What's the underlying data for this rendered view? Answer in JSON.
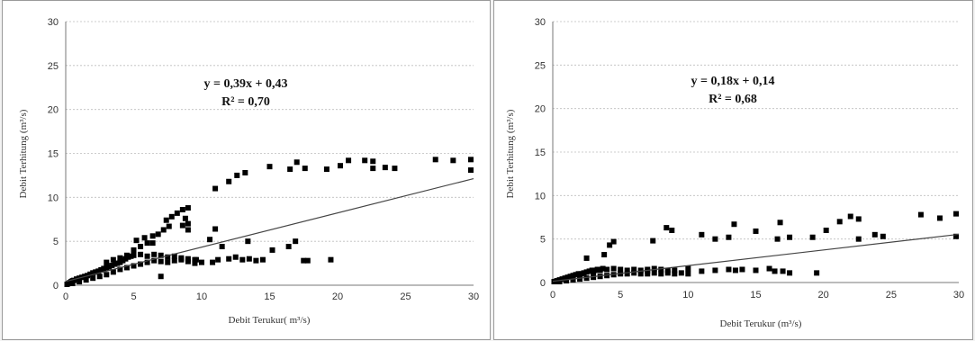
{
  "chart_data": [
    {
      "type": "scatter",
      "xlabel": "Debit Terukur( m³/s)",
      "ylabel": "Debit Terhitung (m³/s)",
      "xlim": [
        0,
        30
      ],
      "ylim": [
        0,
        30
      ],
      "xticks": [
        "0",
        "5",
        "10",
        "15",
        "20",
        "25",
        "30"
      ],
      "yticks": [
        "0",
        "5",
        "10",
        "15",
        "20",
        "25",
        "30"
      ],
      "grid": true,
      "equation": "y = 0,39x + 0,43",
      "r2": "R² = 0,70",
      "trendline": {
        "slope": 0.39,
        "intercept": 0.43
      },
      "points": [
        [
          0.1,
          0.1
        ],
        [
          0.2,
          0.2
        ],
        [
          0.3,
          0.3
        ],
        [
          0.4,
          0.4
        ],
        [
          0.5,
          0.5
        ],
        [
          0.6,
          0.55
        ],
        [
          0.8,
          0.7
        ],
        [
          1.0,
          0.8
        ],
        [
          1.2,
          0.9
        ],
        [
          1.4,
          1.0
        ],
        [
          1.6,
          1.1
        ],
        [
          1.8,
          1.25
        ],
        [
          2.0,
          1.4
        ],
        [
          2.2,
          1.5
        ],
        [
          2.4,
          1.6
        ],
        [
          2.6,
          1.75
        ],
        [
          2.8,
          1.9
        ],
        [
          3.0,
          2.0
        ],
        [
          3.2,
          2.1
        ],
        [
          3.4,
          2.25
        ],
        [
          3.6,
          2.4
        ],
        [
          3.8,
          2.5
        ],
        [
          4.0,
          2.6
        ],
        [
          4.2,
          2.8
        ],
        [
          4.4,
          3.0
        ],
        [
          4.6,
          3.2
        ],
        [
          4.8,
          3.3
        ],
        [
          5.0,
          3.4
        ],
        [
          0.5,
          0.2
        ],
        [
          1.0,
          0.4
        ],
        [
          1.5,
          0.6
        ],
        [
          2.0,
          0.8
        ],
        [
          2.5,
          1.0
        ],
        [
          3.0,
          1.2
        ],
        [
          3.5,
          1.5
        ],
        [
          4.0,
          1.8
        ],
        [
          4.5,
          2.0
        ],
        [
          5.0,
          2.2
        ],
        [
          5.5,
          2.4
        ],
        [
          6.0,
          2.6
        ],
        [
          6.5,
          2.8
        ],
        [
          7.0,
          2.7
        ],
        [
          7.5,
          2.6
        ],
        [
          8.0,
          2.8
        ],
        [
          8.5,
          2.9
        ],
        [
          9.0,
          2.7
        ],
        [
          9.5,
          2.5
        ],
        [
          10.0,
          2.6
        ],
        [
          3.0,
          2.6
        ],
        [
          3.5,
          2.9
        ],
        [
          4.0,
          3.1
        ],
        [
          4.5,
          3.4
        ],
        [
          5.0,
          3.6
        ],
        [
          5.5,
          3.5
        ],
        [
          6.0,
          3.3
        ],
        [
          6.5,
          3.5
        ],
        [
          7.0,
          3.4
        ],
        [
          7.5,
          3.2
        ],
        [
          8.0,
          3.3
        ],
        [
          8.5,
          3.1
        ],
        [
          9.0,
          3.0
        ],
        [
          9.5,
          2.9
        ],
        [
          5.0,
          4.0
        ],
        [
          5.5,
          4.4
        ],
        [
          6.0,
          4.8
        ],
        [
          5.2,
          5.1
        ],
        [
          5.8,
          5.4
        ],
        [
          6.4,
          5.6
        ],
        [
          6.8,
          5.8
        ],
        [
          7.2,
          6.3
        ],
        [
          7.6,
          6.7
        ],
        [
          7.4,
          7.4
        ],
        [
          7.8,
          7.8
        ],
        [
          8.2,
          8.2
        ],
        [
          8.6,
          8.6
        ],
        [
          9.0,
          8.8
        ],
        [
          8.8,
          7.6
        ],
        [
          9.0,
          7.0
        ],
        [
          8.6,
          6.8
        ],
        [
          9.0,
          6.3
        ],
        [
          7.0,
          1.0
        ],
        [
          6.4,
          4.8
        ],
        [
          10.6,
          5.2
        ],
        [
          11.0,
          6.4
        ],
        [
          11.5,
          4.4
        ],
        [
          12.0,
          3.0
        ],
        [
          12.5,
          3.2
        ],
        [
          13.0,
          2.9
        ],
        [
          13.5,
          3.0
        ],
        [
          14.0,
          2.8
        ],
        [
          14.5,
          2.9
        ],
        [
          10.8,
          2.6
        ],
        [
          11.2,
          2.9
        ],
        [
          11.0,
          11.0
        ],
        [
          12.0,
          11.8
        ],
        [
          12.6,
          12.5
        ],
        [
          13.2,
          12.8
        ],
        [
          15.0,
          13.5
        ],
        [
          16.5,
          13.2
        ],
        [
          17.0,
          14.0
        ],
        [
          17.6,
          13.3
        ],
        [
          19.2,
          13.2
        ],
        [
          20.2,
          13.6
        ],
        [
          20.8,
          14.2
        ],
        [
          22.0,
          14.2
        ],
        [
          22.6,
          13.3
        ],
        [
          22.6,
          14.1
        ],
        [
          23.5,
          13.4
        ],
        [
          24.2,
          13.3
        ],
        [
          27.2,
          14.3
        ],
        [
          28.5,
          14.2
        ],
        [
          29.8,
          14.3
        ],
        [
          29.8,
          13.1
        ],
        [
          13.4,
          5.0
        ],
        [
          16.4,
          4.4
        ],
        [
          16.9,
          5.0
        ],
        [
          17.5,
          2.8
        ],
        [
          17.8,
          2.8
        ],
        [
          19.5,
          2.9
        ],
        [
          15.2,
          4.0
        ],
        [
          9.6,
          2.9
        ]
      ]
    },
    {
      "type": "scatter",
      "xlabel": "Debit Terukur (m³/s)",
      "ylabel": "Debit Terhitung (m³/s)",
      "xlim": [
        0,
        30
      ],
      "ylim": [
        0,
        30
      ],
      "xticks": [
        "0",
        "5",
        "10",
        "15",
        "20",
        "25",
        "30"
      ],
      "yticks": [
        "0",
        "5",
        "10",
        "15",
        "20",
        "25",
        "30"
      ],
      "grid": true,
      "equation": "y = 0,18x + 0,14",
      "r2": "R² = 0,68",
      "trendline": {
        "slope": 0.18,
        "intercept": 0.14
      },
      "points": [
        [
          0.1,
          0.1
        ],
        [
          0.3,
          0.2
        ],
        [
          0.5,
          0.3
        ],
        [
          0.7,
          0.4
        ],
        [
          0.9,
          0.5
        ],
        [
          1.1,
          0.6
        ],
        [
          1.3,
          0.7
        ],
        [
          1.5,
          0.8
        ],
        [
          1.7,
          0.9
        ],
        [
          1.9,
          1.0
        ],
        [
          2.1,
          1.0
        ],
        [
          2.3,
          1.1
        ],
        [
          2.5,
          1.2
        ],
        [
          2.7,
          1.3
        ],
        [
          2.9,
          1.4
        ],
        [
          3.1,
          1.4
        ],
        [
          3.3,
          1.5
        ],
        [
          3.5,
          1.5
        ],
        [
          3.7,
          1.6
        ],
        [
          0.5,
          0.1
        ],
        [
          1.0,
          0.2
        ],
        [
          1.5,
          0.3
        ],
        [
          2.0,
          0.4
        ],
        [
          2.5,
          0.5
        ],
        [
          3.0,
          0.6
        ],
        [
          3.5,
          0.7
        ],
        [
          4.0,
          0.8
        ],
        [
          4.5,
          0.9
        ],
        [
          5.0,
          1.0
        ],
        [
          5.5,
          1.0
        ],
        [
          6.0,
          1.1
        ],
        [
          6.5,
          1.0
        ],
        [
          7.0,
          1.0
        ],
        [
          7.5,
          1.1
        ],
        [
          8.0,
          1.0
        ],
        [
          8.5,
          1.1
        ],
        [
          9.0,
          1.0
        ],
        [
          9.5,
          1.1
        ],
        [
          10.0,
          1.0
        ],
        [
          3.0,
          1.2
        ],
        [
          3.5,
          1.4
        ],
        [
          4.0,
          1.5
        ],
        [
          4.5,
          1.6
        ],
        [
          5.0,
          1.5
        ],
        [
          5.5,
          1.4
        ],
        [
          6.0,
          1.5
        ],
        [
          6.5,
          1.4
        ],
        [
          7.0,
          1.5
        ],
        [
          7.5,
          1.6
        ],
        [
          8.0,
          1.5
        ],
        [
          8.5,
          1.4
        ],
        [
          9.0,
          1.4
        ],
        [
          2.5,
          2.8
        ],
        [
          4.2,
          4.3
        ],
        [
          4.5,
          4.7
        ],
        [
          3.8,
          3.2
        ],
        [
          7.4,
          4.8
        ],
        [
          8.4,
          6.3
        ],
        [
          8.8,
          6.0
        ],
        [
          7.0,
          1.3
        ],
        [
          10.0,
          1.6
        ],
        [
          11.0,
          1.3
        ],
        [
          12.0,
          1.4
        ],
        [
          13.0,
          1.5
        ],
        [
          13.5,
          1.4
        ],
        [
          14.0,
          1.5
        ],
        [
          15.0,
          1.4
        ],
        [
          16.0,
          1.6
        ],
        [
          17.0,
          1.3
        ],
        [
          17.5,
          1.1
        ],
        [
          16.4,
          1.3
        ],
        [
          19.5,
          1.1
        ],
        [
          11.0,
          5.5
        ],
        [
          12.0,
          5.0
        ],
        [
          13.0,
          5.2
        ],
        [
          13.4,
          6.7
        ],
        [
          15.0,
          5.9
        ],
        [
          16.6,
          5.0
        ],
        [
          16.8,
          6.9
        ],
        [
          17.5,
          5.2
        ],
        [
          19.2,
          5.2
        ],
        [
          20.2,
          6.0
        ],
        [
          21.2,
          7.0
        ],
        [
          22.0,
          7.6
        ],
        [
          22.6,
          7.3
        ],
        [
          22.6,
          5.0
        ],
        [
          23.8,
          5.5
        ],
        [
          24.4,
          5.3
        ],
        [
          27.2,
          7.8
        ],
        [
          28.6,
          7.4
        ],
        [
          29.8,
          7.9
        ],
        [
          29.8,
          5.3
        ]
      ]
    }
  ]
}
